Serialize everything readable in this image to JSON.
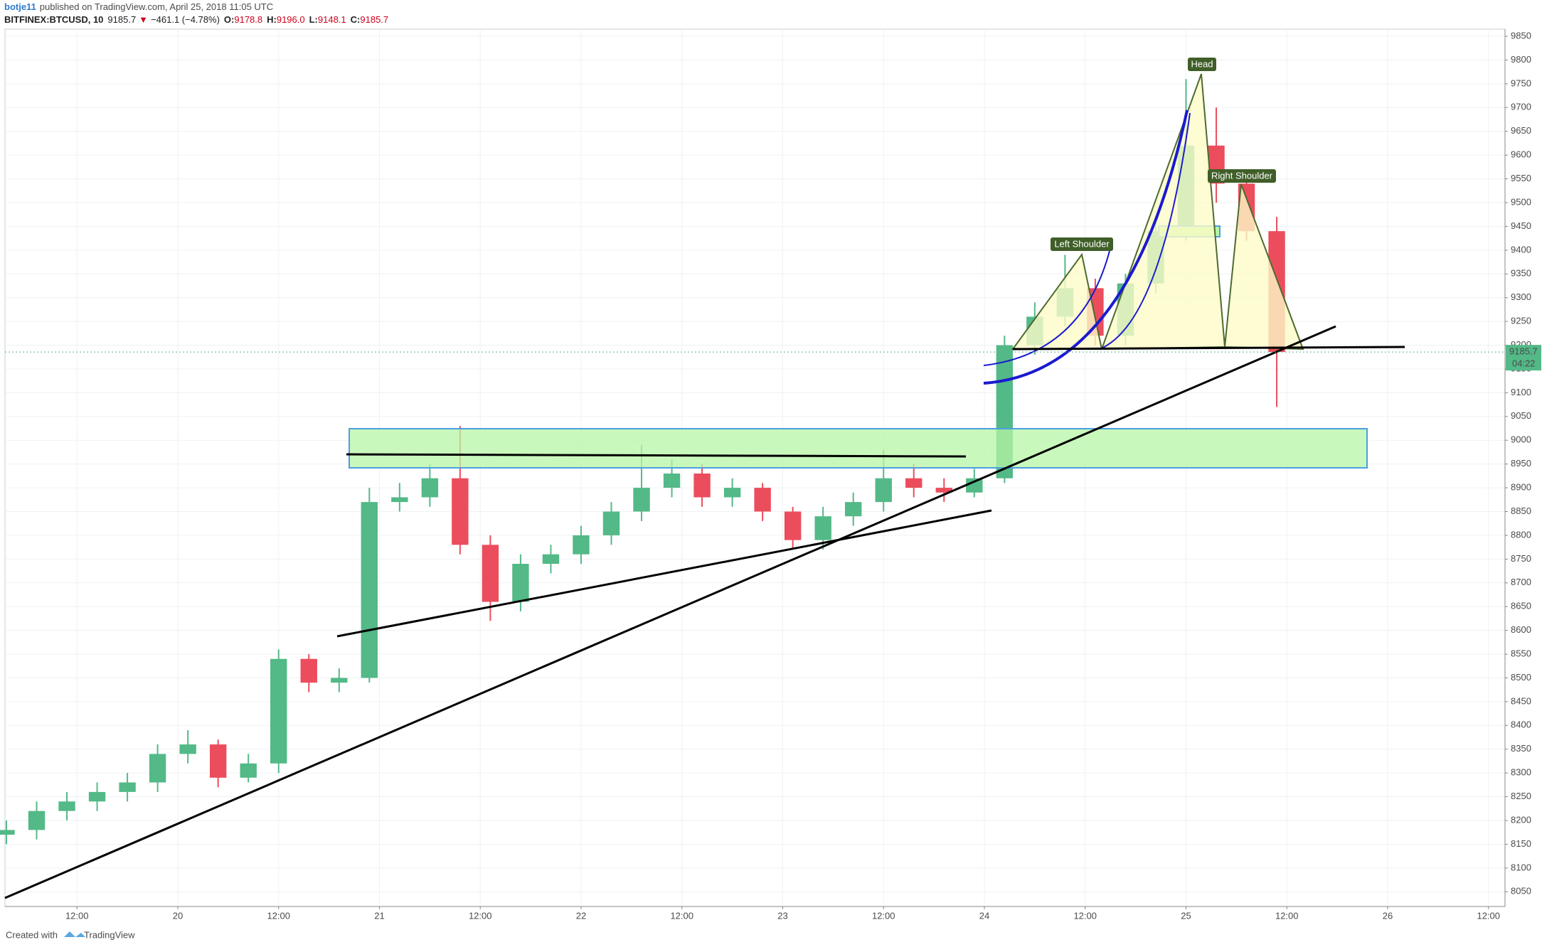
{
  "header": {
    "author": "botje11",
    "published": "published on TradingView.com, April 25, 2018 11:05 UTC",
    "symbol": "BITFINEX:BTCUSD, 10",
    "last": "9185.7",
    "change": "−461.1 (−4.78%)",
    "ohlc": [
      {
        "label": "O:",
        "value": "9178.8"
      },
      {
        "label": "H:",
        "value": "9196.0"
      },
      {
        "label": "L:",
        "value": "9148.1"
      },
      {
        "label": "C:",
        "value": "9185.7"
      }
    ]
  },
  "annotations": {
    "head": "Head",
    "left_shoulder": "Left Shoulder",
    "right_shoulder": "Right Shoulder",
    "countdown": "04:22"
  },
  "footer": {
    "created": "Created with",
    "brand": "TradingView"
  },
  "chart_data": {
    "type": "candlestick",
    "up_color": "#53b987",
    "down_color": "#eb4d5c",
    "grid": true,
    "x": [
      0.15,
      0.3,
      0.45,
      0.6,
      0.75,
      0.9,
      1.05,
      1.2,
      1.35,
      1.5,
      1.65,
      1.8,
      1.95,
      2.1,
      2.25,
      2.4,
      2.55,
      2.7,
      2.85,
      3.0,
      3.15,
      3.3,
      3.45,
      3.6,
      3.75,
      3.9,
      4.05,
      4.2,
      4.35,
      4.5,
      4.65,
      4.8,
      4.95,
      5.1,
      5.25,
      5.4,
      5.55,
      5.7,
      5.85,
      6.0,
      6.15,
      6.3,
      6.45
    ],
    "open": [
      8170,
      8180,
      8220,
      8240,
      8260,
      8280,
      8340,
      8360,
      8290,
      8320,
      8540,
      8490,
      8500,
      8870,
      8880,
      8920,
      8780,
      8660,
      8740,
      8760,
      8800,
      8850,
      8900,
      8930,
      8880,
      8900,
      8850,
      8790,
      8840,
      8870,
      8920,
      8900,
      8890,
      8920,
      9200,
      9260,
      9320,
      9220,
      9330,
      9440,
      9620,
      9540,
      9440
    ],
    "high": [
      8200,
      8240,
      8260,
      8280,
      8300,
      8360,
      8390,
      8370,
      8340,
      8560,
      8550,
      8520,
      8900,
      8910,
      8950,
      9030,
      8800,
      8760,
      8780,
      8820,
      8870,
      8990,
      8960,
      8950,
      8920,
      8910,
      8860,
      8860,
      8890,
      8980,
      8950,
      8920,
      8940,
      9220,
      9290,
      9390,
      9340,
      9350,
      9470,
      9760,
      9700,
      9560,
      9470
    ],
    "low": [
      8150,
      8160,
      8200,
      8220,
      8240,
      8260,
      8320,
      8270,
      8280,
      8300,
      8470,
      8470,
      8490,
      8850,
      8860,
      8760,
      8620,
      8640,
      8720,
      8740,
      8780,
      8830,
      8880,
      8860,
      8860,
      8830,
      8770,
      8770,
      8820,
      8850,
      8880,
      8870,
      8880,
      8910,
      9180,
      9240,
      9200,
      9200,
      9310,
      9420,
      9500,
      9420,
      9070
    ],
    "close": [
      8180,
      8220,
      8240,
      8260,
      8280,
      8340,
      8360,
      8290,
      8320,
      8540,
      8490,
      8500,
      8870,
      8880,
      8920,
      8780,
      8660,
      8740,
      8760,
      8800,
      8850,
      8900,
      8930,
      8880,
      8900,
      8850,
      8790,
      8840,
      8870,
      8920,
      8900,
      8890,
      8920,
      9200,
      9260,
      9320,
      9220,
      9330,
      9440,
      9620,
      9540,
      9440,
      9185.7
    ],
    "xlim": [
      0.143,
      7.582
    ],
    "xticks": [
      {
        "value": 0.5,
        "label": "12:00"
      },
      {
        "value": 1,
        "label": "20"
      },
      {
        "value": 1.5,
        "label": "12:00"
      },
      {
        "value": 2,
        "label": "21"
      },
      {
        "value": 2.5,
        "label": "12:00"
      },
      {
        "value": 3,
        "label": "22"
      },
      {
        "value": 3.5,
        "label": "12:00"
      },
      {
        "value": 4,
        "label": "23"
      },
      {
        "value": 4.5,
        "label": "12:00"
      },
      {
        "value": 5,
        "label": "24"
      },
      {
        "value": 5.5,
        "label": "12:00"
      },
      {
        "value": 6,
        "label": "25"
      },
      {
        "value": 6.5,
        "label": "12:00"
      },
      {
        "value": 7,
        "label": "26"
      },
      {
        "value": 7.5,
        "label": "12:00"
      }
    ],
    "ylim": [
      8019,
      9865
    ],
    "yticks": [
      8050,
      8100,
      8150,
      8200,
      8250,
      8300,
      8350,
      8400,
      8450,
      8500,
      8550,
      8600,
      8650,
      8700,
      8750,
      8800,
      8850,
      8900,
      8950,
      9000,
      9050,
      9100,
      9150,
      9200,
      9250,
      9300,
      9350,
      9400,
      9450,
      9500,
      9550,
      9600,
      9650,
      9700,
      9750,
      9800,
      9850
    ]
  }
}
